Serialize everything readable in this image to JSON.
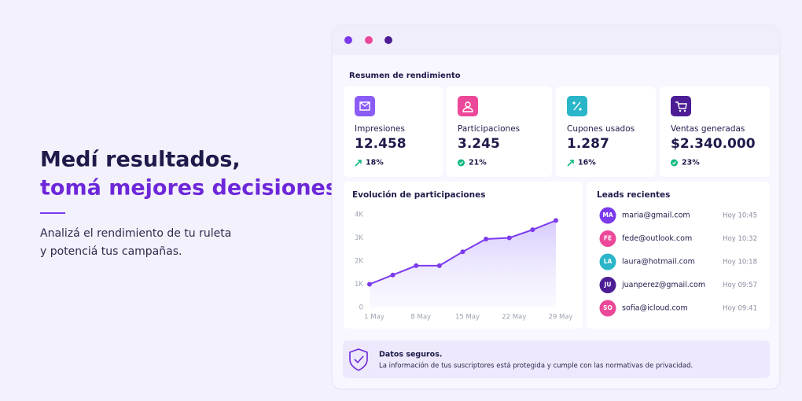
{
  "hero": {
    "title_line1": "Medí resultados,",
    "title_line2": "tomá mejores decisiones",
    "text_line1": "Analizá el rendimiento de tu ruleta",
    "text_line2": "y potenciá tus campañas."
  },
  "dashboard": {
    "summary_title": "Resumen de rendimiento",
    "cards": [
      {
        "label": "Impresiones",
        "value": "12.458",
        "change": "18%",
        "color": "#8b5cf6",
        "trend_icon": "arrow"
      },
      {
        "label": "Participaciones",
        "value": "3.245",
        "change": "21%",
        "color": "#ec4899",
        "trend_icon": "badge"
      },
      {
        "label": "Cupones usados",
        "value": "1.287",
        "change": "16%",
        "color": "#2bb5c9",
        "trend_icon": "arrow"
      },
      {
        "label": "Ventas generadas",
        "value": "$2.340.000",
        "change": "23%",
        "color": "#4c1d95",
        "trend_icon": "badge"
      }
    ]
  },
  "chart_data": {
    "type": "line",
    "title": "Evolución de participaciones",
    "x": [
      1,
      4.5,
      8,
      11.5,
      15,
      18.5,
      22,
      25.5,
      29
    ],
    "values": [
      1000,
      1400,
      1800,
      1800,
      2400,
      2950,
      3000,
      3350,
      3750
    ],
    "color": "#7c3aed",
    "xlim": [
      1,
      29
    ],
    "xticks": [
      {
        "value": 1,
        "label": "1 May"
      },
      {
        "value": 8,
        "label": "8 May"
      },
      {
        "value": 15,
        "label": "15 May"
      },
      {
        "value": 22,
        "label": "22 May"
      },
      {
        "value": 29,
        "label": "29 May"
      }
    ],
    "ylim": [
      0,
      4000
    ],
    "yticks": [
      0,
      {
        "value": 1000,
        "label": "1K"
      },
      {
        "value": 2000,
        "label": "2K"
      },
      {
        "value": 3000,
        "label": "3K"
      },
      {
        "value": 4000,
        "label": "4K"
      }
    ]
  },
  "leads": {
    "title": "Leads recientes",
    "items": [
      {
        "initials": "MA",
        "email": "maria@gmail.com",
        "time": "Hoy 10:45",
        "color": "#7c3aed"
      },
      {
        "initials": "FE",
        "email": "fede@outlook.com",
        "time": "Hoy 10:32",
        "color": "#ec4899"
      },
      {
        "initials": "LA",
        "email": "laura@hotmail.com",
        "time": "Hoy 10:18",
        "color": "#2bb5c9"
      },
      {
        "initials": "JU",
        "email": "juanperez@gmail.com",
        "time": "Hoy 09:57",
        "color": "#4c1d95"
      },
      {
        "initials": "SO",
        "email": "sofia@icloud.com",
        "time": "Hoy 09:41",
        "color": "#ec4899"
      }
    ]
  },
  "security": {
    "title": "Datos seguros.",
    "text": "La información de tus suscriptores está protegida y cumple con las normativas de privacidad."
  }
}
